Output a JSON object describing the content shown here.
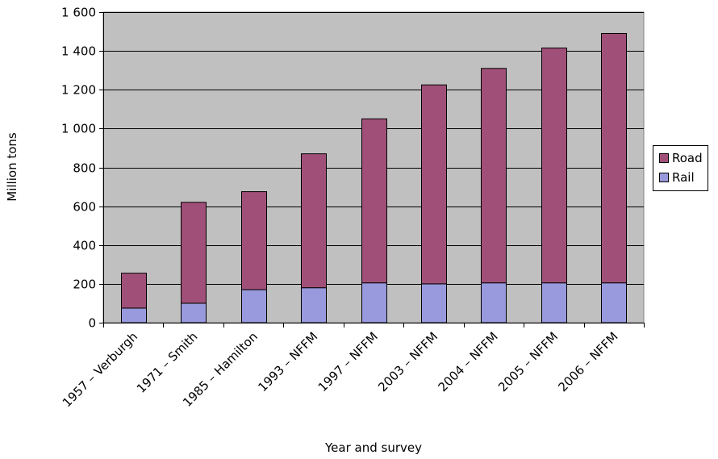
{
  "chart_data": {
    "type": "bar",
    "stacked": true,
    "title": "",
    "xlabel": "Year and survey",
    "ylabel": "Million tons",
    "ylim": [
      0,
      1600
    ],
    "yticks": [
      0,
      200,
      400,
      600,
      800,
      1000,
      1200,
      1400,
      1600
    ],
    "ytick_labels": [
      "0",
      "200",
      "400",
      "600",
      "800",
      "1 000",
      "1 200",
      "1 400",
      "1 600"
    ],
    "categories": [
      "1957 – Verburgh",
      "1971 – Smith",
      "1985 – Hamilton",
      "1993 – NFFM",
      "1997 – NFFM",
      "2003 – NFFM",
      "2004 – NFFM",
      "2005 – NFFM",
      "2006 – NFFM"
    ],
    "series": [
      {
        "name": "Rail",
        "color": "#9999dd",
        "values": [
          75,
          100,
          170,
          180,
          205,
          200,
          205,
          205,
          205
        ]
      },
      {
        "name": "Road",
        "color": "#a05078",
        "values": [
          180,
          520,
          505,
          690,
          845,
          1025,
          1105,
          1210,
          1285
        ]
      }
    ],
    "grid": true,
    "plot_background": "#c0c0c0",
    "legend": {
      "placement": "right",
      "order": [
        "Road",
        "Rail"
      ]
    }
  }
}
